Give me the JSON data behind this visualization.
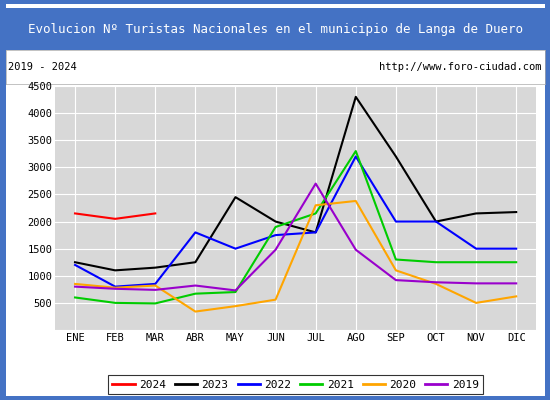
{
  "title": "Evolucion Nº Turistas Nacionales en el municipio de Langa de Duero",
  "title_bg_color": "#4472c4",
  "title_text_color": "white",
  "subtitle_left": "2019 - 2024",
  "subtitle_right": "http://www.foro-ciudad.com",
  "months": [
    "ENE",
    "FEB",
    "MAR",
    "ABR",
    "MAY",
    "JUN",
    "JUL",
    "AGO",
    "SEP",
    "OCT",
    "NOV",
    "DIC"
  ],
  "ylim": [
    0,
    4500
  ],
  "yticks": [
    0,
    500,
    1000,
    1500,
    2000,
    2500,
    3000,
    3500,
    4000,
    4500
  ],
  "series": {
    "2024": {
      "color": "#ff0000",
      "data": [
        2150,
        2050,
        2150,
        null,
        null,
        null,
        null,
        null,
        null,
        null,
        null,
        null
      ]
    },
    "2023": {
      "color": "#000000",
      "data": [
        1250,
        1100,
        1150,
        1250,
        2450,
        2000,
        1800,
        4300,
        3200,
        2000,
        2150,
        2175
      ]
    },
    "2022": {
      "color": "#0000ff",
      "data": [
        1200,
        800,
        850,
        1800,
        1500,
        1750,
        1800,
        3200,
        2000,
        2000,
        1500,
        1500
      ]
    },
    "2021": {
      "color": "#00cc00",
      "data": [
        600,
        500,
        490,
        670,
        700,
        1900,
        2150,
        3300,
        1300,
        1250,
        1250,
        1250
      ]
    },
    "2020": {
      "color": "#ffa500",
      "data": [
        850,
        780,
        820,
        340,
        440,
        560,
        2300,
        2380,
        1100,
        850,
        500,
        620
      ]
    },
    "2019": {
      "color": "#9900cc",
      "data": [
        800,
        760,
        740,
        820,
        730,
        1480,
        2700,
        1480,
        920,
        880,
        860,
        860
      ]
    }
  },
  "legend_order": [
    "2024",
    "2023",
    "2022",
    "2021",
    "2020",
    "2019"
  ],
  "bg_color": "#ffffff",
  "plot_bg_color": "#d8d8d8",
  "grid_color": "#ffffff",
  "border_color": "#4472c4",
  "title_fontsize": 9.0,
  "subtitle_fontsize": 7.5,
  "tick_fontsize": 7.5,
  "legend_fontsize": 8.0
}
